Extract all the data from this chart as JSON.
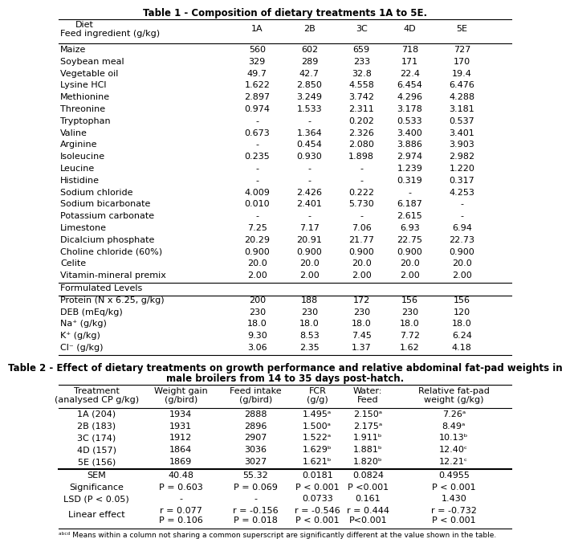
{
  "table1_title": "Table 1 - Composition of dietary treatments 1A to 5E.",
  "table1_rows": [
    [
      "Maize",
      "560",
      "602",
      "659",
      "718",
      "727"
    ],
    [
      "Soybean meal",
      "329",
      "289",
      "233",
      "171",
      "170"
    ],
    [
      "Vegetable oil",
      "49.7",
      "42.7",
      "32.8",
      "22.4",
      "19.4"
    ],
    [
      "Lysine HCl",
      "1.622",
      "2.850",
      "4.558",
      "6.454",
      "6.476"
    ],
    [
      "Methionine",
      "2.897",
      "3.249",
      "3.742",
      "4.296",
      "4.288"
    ],
    [
      "Threonine",
      "0.974",
      "1.533",
      "2.311",
      "3.178",
      "3.181"
    ],
    [
      "Tryptophan",
      "-",
      "-",
      "0.202",
      "0.533",
      "0.537"
    ],
    [
      "Valine",
      "0.673",
      "1.364",
      "2.326",
      "3.400",
      "3.401"
    ],
    [
      "Arginine",
      "-",
      "0.454",
      "2.080",
      "3.886",
      "3.903"
    ],
    [
      "Isoleucine",
      "0.235",
      "0.930",
      "1.898",
      "2.974",
      "2.982"
    ],
    [
      "Leucine",
      "-",
      "-",
      "-",
      "1.239",
      "1.220"
    ],
    [
      "Histidine",
      "-",
      "-",
      "-",
      "0.319",
      "0.317"
    ],
    [
      "Sodium chloride",
      "4.009",
      "2.426",
      "0.222",
      "-",
      "4.253"
    ],
    [
      "Sodium bicarbonate",
      "0.010",
      "2.401",
      "5.730",
      "6.187",
      "-"
    ],
    [
      "Potassium carbonate",
      "-",
      "-",
      "-",
      "2.615",
      "-"
    ],
    [
      "Limestone",
      "7.25",
      "7.17",
      "7.06",
      "6.93",
      "6.94"
    ],
    [
      "Dicalcium phosphate",
      "20.29",
      "20.91",
      "21.77",
      "22.75",
      "22.73"
    ],
    [
      "Choline chloride (60%)",
      "0.900",
      "0.900",
      "0.900",
      "0.900",
      "0.900"
    ],
    [
      "Celite",
      "20.0",
      "20.0",
      "20.0",
      "20.0",
      "20.0"
    ],
    [
      "Vitamin-mineral premix",
      "2.00",
      "2.00",
      "2.00",
      "2.00",
      "2.00"
    ]
  ],
  "table1_section": "Formulated Levels",
  "table1_section_rows": [
    [
      "Protein (N x 6.25, g/kg)",
      "200",
      "188",
      "172",
      "156",
      "156"
    ],
    [
      "DEB (mEq/kg)",
      "230",
      "230",
      "230",
      "230",
      "120"
    ],
    [
      "Na⁺ (g/kg)",
      "18.0",
      "18.0",
      "18.0",
      "18.0",
      "18.0"
    ],
    [
      "K⁺ (g/kg)",
      "9.30",
      "8.53",
      "7.45",
      "7.72",
      "6.24"
    ],
    [
      "Cl⁻ (g/kg)",
      "3.06",
      "2.35",
      "1.37",
      "1.62",
      "4.18"
    ]
  ],
  "table2_title_line1": "Table 2 - Effect of dietary treatments on growth performance and relative abdominal fat-pad weights in",
  "table2_title_line2": "male broilers from 14 to 35 days post-hatch.",
  "table2_header": [
    [
      "Treatment",
      "(analysed CP g/kg)"
    ],
    [
      "Weight gain",
      "(g/bird)"
    ],
    [
      "Feed intake",
      "(g/bird)"
    ],
    [
      "FCR",
      "(g/g)"
    ],
    [
      "Water:",
      "Feed"
    ],
    [
      "Relative fat-pad",
      "weight (g/kg)"
    ]
  ],
  "table2_data_rows": [
    [
      "1A (204)",
      "1934",
      "2888",
      "1.495ᵃ",
      "2.150ᵃ",
      "7.26ᵃ"
    ],
    [
      "2B (183)",
      "1931",
      "2896",
      "1.500ᵃ",
      "2.175ᵃ",
      "8.49ᵃ"
    ],
    [
      "3C (174)",
      "1912",
      "2907",
      "1.522ᵃ",
      "1.911ᵇ",
      "10.13ᵇ"
    ],
    [
      "4D (157)",
      "1864",
      "3036",
      "1.629ᵇ",
      "1.881ᵇ",
      "12.40ᶜ"
    ],
    [
      "5E (156)",
      "1869",
      "3027",
      "1.621ᵇ",
      "1.820ᵇ",
      "12.21ᶜ"
    ]
  ],
  "table2_stat_rows": [
    [
      "SEM",
      "40.48",
      "55.32",
      "0.0181",
      "0.0824",
      "0.4955"
    ],
    [
      "Significance",
      "P = 0.603",
      "P = 0.069",
      "P < 0.001",
      "P <0.001",
      "P < 0.001"
    ],
    [
      "LSD (P < 0.05)",
      "-",
      "-",
      "0.0733",
      "0.161",
      "1.430"
    ]
  ],
  "table2_linear_row": {
    "label": "Linear effect",
    "values": [
      "r = 0.077",
      "r = -0.156",
      "r = -0.546",
      "r = 0.444",
      "r = -0.732"
    ],
    "pvalues": [
      "P = 0.106",
      "P = 0.018",
      "P < 0.001",
      "P<0.001",
      "P < 0.001"
    ]
  },
  "footnote": "ᵃᵇᶜᵈ Means within a column not sharing a common superscript are significantly different at the value shown in the table.",
  "bg_color": "#ffffff",
  "text_color": "#000000",
  "font_size": 8.0,
  "title_font_size": 8.5
}
